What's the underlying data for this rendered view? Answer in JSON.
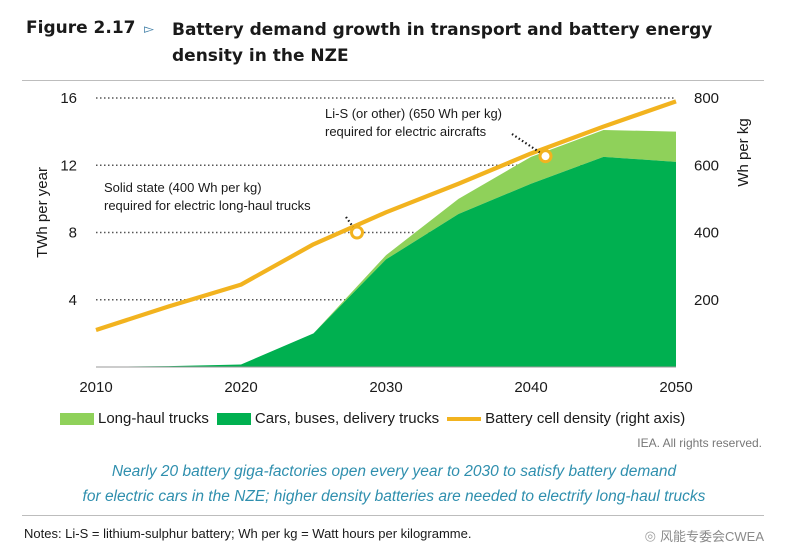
{
  "header": {
    "figure_label": "Figure 2.17",
    "title": "Battery demand growth in transport and battery energy density in the NZE"
  },
  "chart_data": {
    "type": "area",
    "x": [
      2010,
      2015,
      2020,
      2025,
      2030,
      2035,
      2040,
      2045,
      2050
    ],
    "xticks": [
      "2010",
      "2020",
      "2030",
      "2040",
      "2050"
    ],
    "xlim": [
      2010,
      2050
    ],
    "ylabel_left": "TWh per year",
    "ylim_left": [
      0,
      16
    ],
    "yticks_left": [
      "4",
      "8",
      "12",
      "16"
    ],
    "ylabel_right": "Wh per kg",
    "ylim_right": [
      0,
      800
    ],
    "yticks_right": [
      "200",
      "400",
      "600",
      "800"
    ],
    "grid": "dotted horizontal",
    "series": [
      {
        "name": "Cars, buses, delivery trucks",
        "kind": "stacked-area",
        "color": "#00b050",
        "values": [
          0.02,
          0.05,
          0.15,
          2.0,
          6.4,
          9.1,
          10.9,
          12.5,
          12.2
        ]
      },
      {
        "name": "Long-haul trucks",
        "kind": "stacked-area",
        "color": "#8fd15a",
        "values": [
          0,
          0,
          0,
          0,
          0.25,
          0.9,
          1.6,
          1.6,
          1.8
        ]
      },
      {
        "name": "Battery cell density (right axis)",
        "kind": "line",
        "axis": "right",
        "color": "#f2b31f",
        "values": [
          110,
          180,
          245,
          365,
          460,
          545,
          635,
          715,
          790
        ]
      }
    ],
    "annotations": [
      {
        "text": [
          "Solid state (400 Wh per kg)",
          "required for electric long-haul trucks"
        ],
        "point": {
          "x": 2028,
          "y": 400
        }
      },
      {
        "text": [
          "Li-S (or other) (650 Wh per kg)",
          "required for electric aircrafts"
        ],
        "point": {
          "x": 2041,
          "y": 627
        }
      }
    ]
  },
  "legend": {
    "long_haul": "Long-haul trucks",
    "cars": "Cars, buses, delivery trucks",
    "density": "Battery cell density (right axis)"
  },
  "colors": {
    "long_haul": "#8fd15a",
    "cars": "#00b050",
    "density": "#f2b31f",
    "caption": "#2f8fae"
  },
  "rights": "IEA. All rights reserved.",
  "caption": {
    "line1": "Nearly 20 battery giga-factories open every year to 2030 to satisfy battery demand",
    "line2": "for electric cars in the NZE; higher density batteries are needed to electrify long-haul trucks"
  },
  "notes": "Notes: Li-S = lithium-sulphur battery; Wh per kg = Watt hours per kilogramme.",
  "watermark": "风能专委会CWEA"
}
